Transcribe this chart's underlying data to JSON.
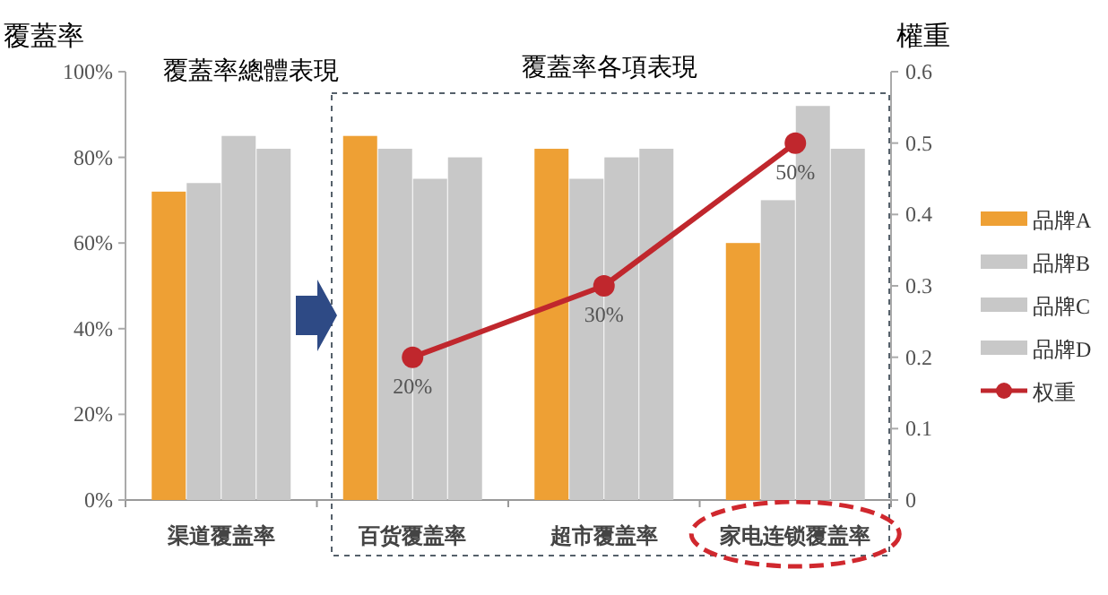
{
  "chart_data": {
    "type": "bar",
    "ylabel": "覆蓋率",
    "y2label": "權重",
    "annotations": [
      "覆蓋率總體表現",
      "覆蓋率各項表現"
    ],
    "categories": [
      "渠道覆盖率",
      "百货覆盖率",
      "超市覆盖率",
      "家电连锁覆盖率"
    ],
    "series": [
      {
        "name": "品牌A",
        "color": "#eea034",
        "values": [
          72,
          85,
          82,
          60
        ]
      },
      {
        "name": "品牌B",
        "color": "#c8c8c8",
        "values": [
          74,
          82,
          75,
          70
        ]
      },
      {
        "name": "品牌C",
        "color": "#c8c8c8",
        "values": [
          85,
          75,
          80,
          92
        ]
      },
      {
        "name": "品牌D",
        "color": "#c8c8c8",
        "values": [
          82,
          80,
          82,
          82
        ]
      },
      {
        "name": "权重",
        "type": "line",
        "axis": "y2",
        "color": "#c0272d",
        "marker": "circle",
        "values": [
          null,
          0.2,
          0.3,
          0.5
        ],
        "value_labels": [
          null,
          "20%",
          "30%",
          "50%"
        ]
      }
    ],
    "ylim": [
      0,
      100
    ],
    "yticks": [
      {
        "value": 0,
        "label": "0%"
      },
      {
        "value": 20,
        "label": "20%"
      },
      {
        "value": 40,
        "label": "40%"
      },
      {
        "value": 60,
        "label": "60%"
      },
      {
        "value": 80,
        "label": "80%"
      },
      {
        "value": 100,
        "label": "100%"
      }
    ],
    "y2lim": [
      0,
      0.6
    ],
    "y2ticks": [
      0,
      0.1,
      0.2,
      0.3,
      0.4,
      0.5,
      0.6
    ],
    "grid": false,
    "legend": "right"
  }
}
